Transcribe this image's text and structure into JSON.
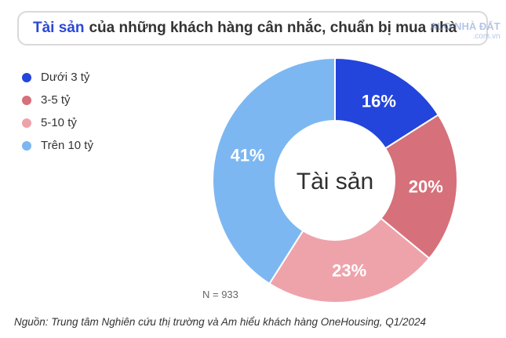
{
  "title": {
    "highlight": "Tài sản",
    "rest": "của những khách hàng cân nhắc, chuẩn bị mua nhà"
  },
  "watermark": {
    "main": "ALO NHÀ ĐẤT",
    "sub": ".com.vn"
  },
  "note": "N = 933",
  "source": "Nguồn: Trung tâm Nghiên cứu thị trường và Am hiểu khách hàng OneHousing, Q1/2024",
  "chart_data": {
    "type": "pie",
    "center_label": "Tài sản",
    "categories": [
      "Dưới 3 tỷ",
      "3-5 tỷ",
      "5-10 tỷ",
      "Trên 10 tỷ"
    ],
    "values": [
      16,
      20,
      23,
      41
    ],
    "value_labels": [
      "16%",
      "20%",
      "23%",
      "41%"
    ],
    "colors": [
      "#2345db",
      "#d6707a",
      "#eea3ab",
      "#7cb7f1"
    ],
    "legend_position": "left"
  }
}
